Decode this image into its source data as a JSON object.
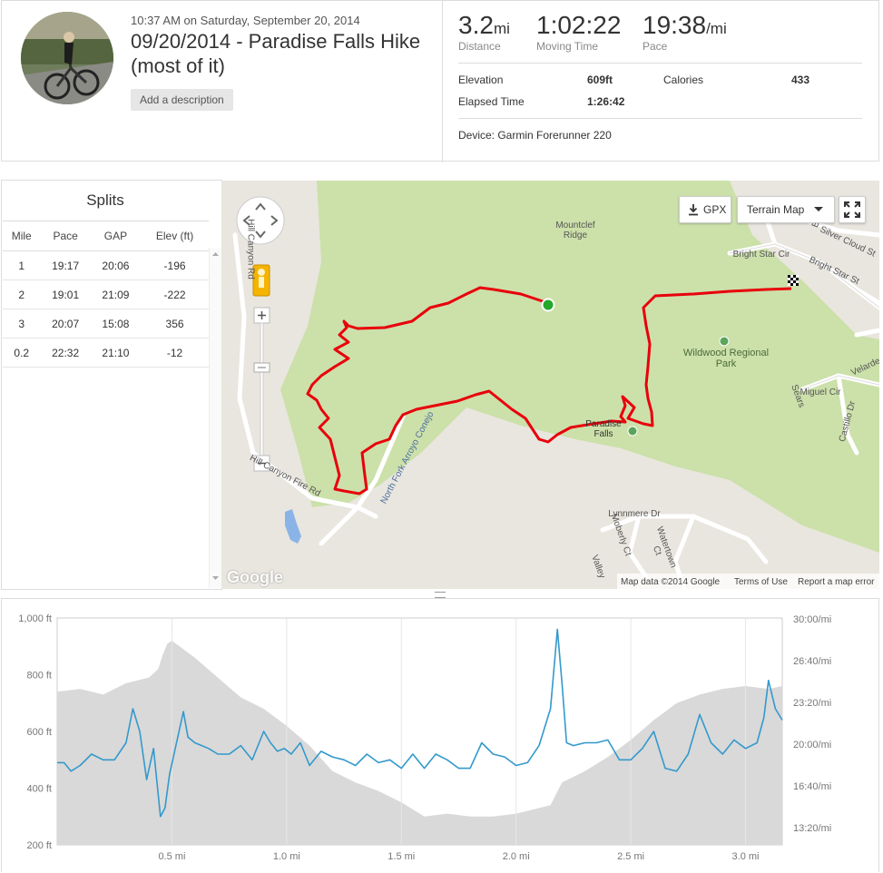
{
  "activity": {
    "datetime": "10:37 AM on Saturday, September 20, 2014",
    "title": "09/20/2014 - Paradise Falls Hike (most of it)",
    "add_description": "Add a description"
  },
  "stats": {
    "distance": {
      "value": "3.2",
      "unit": "mi",
      "label": "Distance"
    },
    "moving_time": {
      "value": "1:02:22",
      "label": "Moving Time"
    },
    "pace": {
      "value": "19:38",
      "unit": "/mi",
      "label": "Pace"
    },
    "elevation": {
      "label": "Elevation",
      "value": "609ft"
    },
    "calories": {
      "label": "Calories",
      "value": "433"
    },
    "elapsed": {
      "label": "Elapsed Time",
      "value": "1:26:42"
    },
    "device": "Device: Garmin Forerunner 220"
  },
  "splits": {
    "title": "Splits",
    "headers": [
      "Mile",
      "Pace",
      "GAP",
      "Elev (ft)"
    ],
    "rows": [
      [
        "1",
        "19:17",
        "20:06",
        "-196"
      ],
      [
        "2",
        "19:01",
        "21:09",
        "-222"
      ],
      [
        "3",
        "20:07",
        "15:08",
        "356"
      ],
      [
        "0.2",
        "22:32",
        "21:10",
        "-12"
      ]
    ]
  },
  "map": {
    "gpx_label": "GPX",
    "map_type_label": "Terrain Map",
    "attribution": "Map data ©2014 Google",
    "terms": "Terms of Use",
    "report": "Report a map error",
    "google_logo": "Google",
    "labels": {
      "ridge": "Mountclef Ridge",
      "park": "Wildwood Regional Park",
      "falls": "Paradise Falls",
      "road1": "Hill Canyon Rd",
      "road2": "Hill Canyon Fire Rd",
      "creek": "North Fork Arroyo Conejo",
      "bright_star_cir": "Bright Star Cir",
      "bright_star_st": "Bright Star St",
      "silver_cloud": "Silver Cloud St",
      "big_sky": "Big Sky",
      "miguel": "Miguel Cir",
      "castillo": "Castillo Dr",
      "velarde": "Velarde",
      "lynnmere": "Lynnmere Dr",
      "moberly": "Moberly Ct",
      "watertown": "Watertown Ct",
      "valley": "Valley",
      "sears": "Sears"
    },
    "colors": {
      "route": "#e8000b",
      "park": "#c9dfa7",
      "start": "#22a82a"
    }
  },
  "chart_data": {
    "type": "area",
    "x_unit": "mi",
    "x_ticks": [
      "0.5 mi",
      "1.0 mi",
      "1.5 mi",
      "2.0 mi",
      "2.5 mi",
      "3.0 mi"
    ],
    "x_tick_values": [
      0.5,
      1.0,
      1.5,
      2.0,
      2.5,
      3.0
    ],
    "y_left_ticks": [
      "1,000 ft",
      "800 ft",
      "600 ft",
      "400 ft",
      "200 ft"
    ],
    "y_left_values": [
      1000,
      800,
      600,
      400,
      200
    ],
    "y_right_ticks": [
      "30:00/mi",
      "26:40/mi",
      "23:20/mi",
      "20:00/mi",
      "16:40/mi",
      "13:20/mi"
    ],
    "xlim": [
      0,
      3.16
    ],
    "ylim_left": [
      200,
      1000
    ],
    "series": [
      {
        "kind": "area",
        "color": "#d9d9d9",
        "x": [
          0,
          0.1,
          0.2,
          0.3,
          0.4,
          0.44,
          0.46,
          0.48,
          0.5,
          0.55,
          0.6,
          0.7,
          0.8,
          0.9,
          1.0,
          1.1,
          1.2,
          1.3,
          1.4,
          1.5,
          1.6,
          1.7,
          1.8,
          1.9,
          2.0,
          2.1,
          2.15,
          2.2,
          2.3,
          2.4,
          2.5,
          2.6,
          2.7,
          2.8,
          2.9,
          3.0,
          3.1,
          3.16
        ],
        "y": [
          740,
          750,
          730,
          770,
          790,
          820,
          870,
          910,
          920,
          890,
          860,
          790,
          720,
          680,
          620,
          550,
          460,
          420,
          390,
          350,
          300,
          310,
          300,
          300,
          310,
          330,
          340,
          420,
          460,
          510,
          570,
          640,
          700,
          730,
          750,
          760,
          750,
          760
        ]
      },
      {
        "kind": "line",
        "color": "#3399cc",
        "x": [
          0,
          0.03,
          0.06,
          0.1,
          0.15,
          0.2,
          0.25,
          0.3,
          0.33,
          0.36,
          0.39,
          0.42,
          0.45,
          0.47,
          0.49,
          0.52,
          0.55,
          0.57,
          0.6,
          0.63,
          0.66,
          0.7,
          0.75,
          0.8,
          0.85,
          0.9,
          0.93,
          0.96,
          0.99,
          1.02,
          1.06,
          1.1,
          1.15,
          1.2,
          1.25,
          1.3,
          1.35,
          1.4,
          1.45,
          1.5,
          1.55,
          1.6,
          1.65,
          1.7,
          1.75,
          1.8,
          1.85,
          1.9,
          1.95,
          2.0,
          2.05,
          2.1,
          2.15,
          2.18,
          2.2,
          2.22,
          2.25,
          2.3,
          2.35,
          2.4,
          2.45,
          2.5,
          2.55,
          2.6,
          2.65,
          2.7,
          2.75,
          2.8,
          2.85,
          2.9,
          2.95,
          3.0,
          3.05,
          3.08,
          3.1,
          3.13,
          3.16
        ],
        "y": [
          490,
          490,
          460,
          480,
          520,
          500,
          500,
          560,
          680,
          600,
          430,
          540,
          300,
          330,
          450,
          560,
          670,
          580,
          560,
          550,
          540,
          520,
          520,
          550,
          500,
          600,
          560,
          530,
          540,
          520,
          560,
          480,
          530,
          510,
          500,
          480,
          520,
          490,
          500,
          470,
          520,
          470,
          520,
          500,
          470,
          470,
          560,
          520,
          510,
          480,
          490,
          550,
          680,
          960,
          770,
          560,
          550,
          560,
          560,
          570,
          500,
          500,
          540,
          600,
          470,
          460,
          520,
          660,
          560,
          520,
          570,
          540,
          560,
          650,
          780,
          680,
          640
        ]
      }
    ]
  }
}
